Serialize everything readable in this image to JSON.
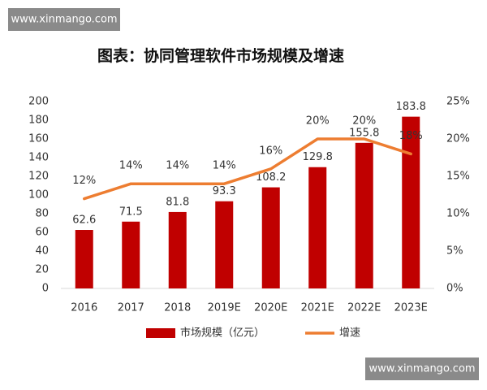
{
  "watermarks": [
    "www.xinmango.com",
    "www.xinmango.com"
  ],
  "chart_data": {
    "type": "bar",
    "title": "图表：协同管理软件市场规模及增速",
    "categories": [
      "2016",
      "2017",
      "2018",
      "2019E",
      "2020E",
      "2021E",
      "2022E",
      "2023E"
    ],
    "series": [
      {
        "name": "市场规模（亿元）",
        "type": "bar",
        "color": "#c00000",
        "values": [
          62.6,
          71.5,
          81.8,
          93.3,
          108.2,
          129.8,
          155.8,
          183.8
        ]
      },
      {
        "name": "增速",
        "type": "line",
        "axis": "y2",
        "color": "#ed7d31",
        "values": [
          12,
          14,
          14,
          14,
          16,
          20,
          20,
          18
        ],
        "value_labels": [
          "12%",
          "14%",
          "14%",
          "14%",
          "16%",
          "20%",
          "20%",
          "18%"
        ]
      }
    ],
    "ylim": [
      0,
      200
    ],
    "yticks": [
      0,
      20,
      40,
      60,
      80,
      100,
      120,
      140,
      160,
      180,
      200
    ],
    "y2lim": [
      0,
      25
    ],
    "y2ticks": [
      {
        "value": 0,
        "label": "0%"
      },
      {
        "value": 5,
        "label": "5%"
      },
      {
        "value": 10,
        "label": "10%"
      },
      {
        "value": 15,
        "label": "15%"
      },
      {
        "value": 20,
        "label": "20%"
      },
      {
        "value": 25,
        "label": "25%"
      }
    ],
    "grid": false,
    "legend": "bottom"
  }
}
